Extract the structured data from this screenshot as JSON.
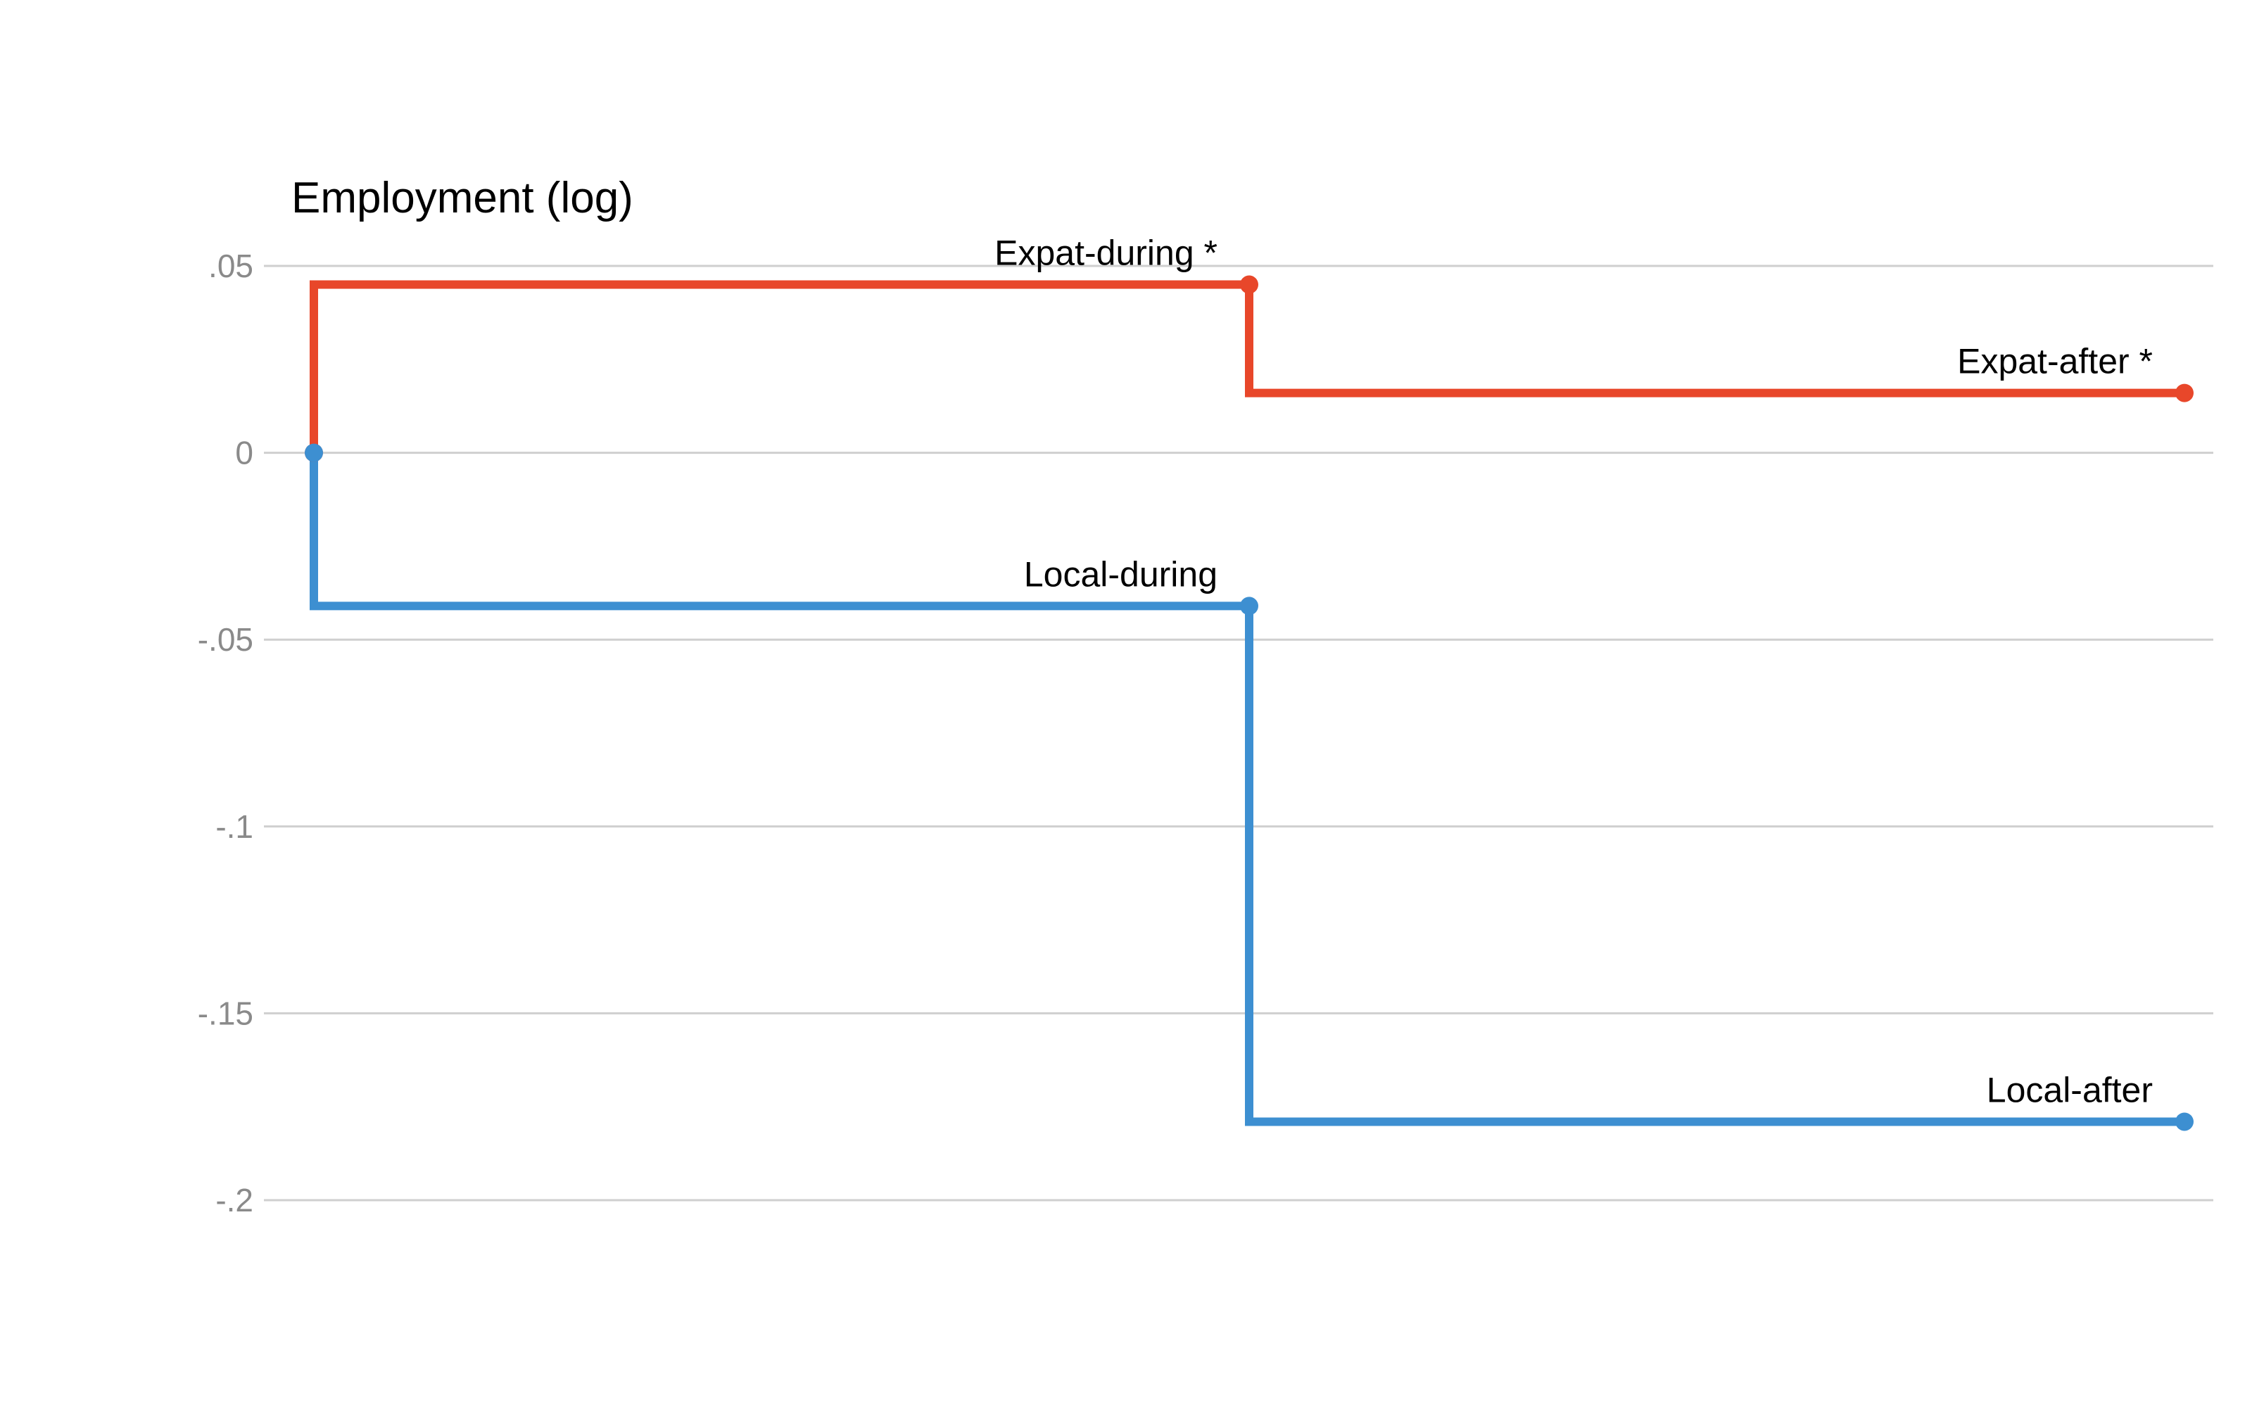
{
  "chart_data": {
    "type": "line",
    "step": true,
    "title": "",
    "ylabel": "Employment (log)",
    "xlabel": "",
    "ylim": [
      -0.2,
      0.05
    ],
    "yticks": [
      {
        "value": 0.05,
        "label": ".05"
      },
      {
        "value": 0,
        "label": "0"
      },
      {
        "value": -0.05,
        "label": "-.05"
      },
      {
        "value": -0.1,
        "label": "-.1"
      },
      {
        "value": -0.15,
        "label": "-.15"
      },
      {
        "value": -0.2,
        "label": "-.2"
      }
    ],
    "grid": true,
    "x": [
      0,
      1,
      2
    ],
    "series": [
      {
        "key": "expat",
        "color": "#e8472a",
        "values": [
          0,
          0.045,
          0.016
        ],
        "labels": [
          "",
          "Expat-during *",
          "Expat-after *"
        ]
      },
      {
        "key": "local",
        "color": "#3d8fd1",
        "values": [
          0,
          -0.041,
          -0.179
        ],
        "labels": [
          "",
          "Local-during",
          "Local-after"
        ]
      }
    ]
  }
}
